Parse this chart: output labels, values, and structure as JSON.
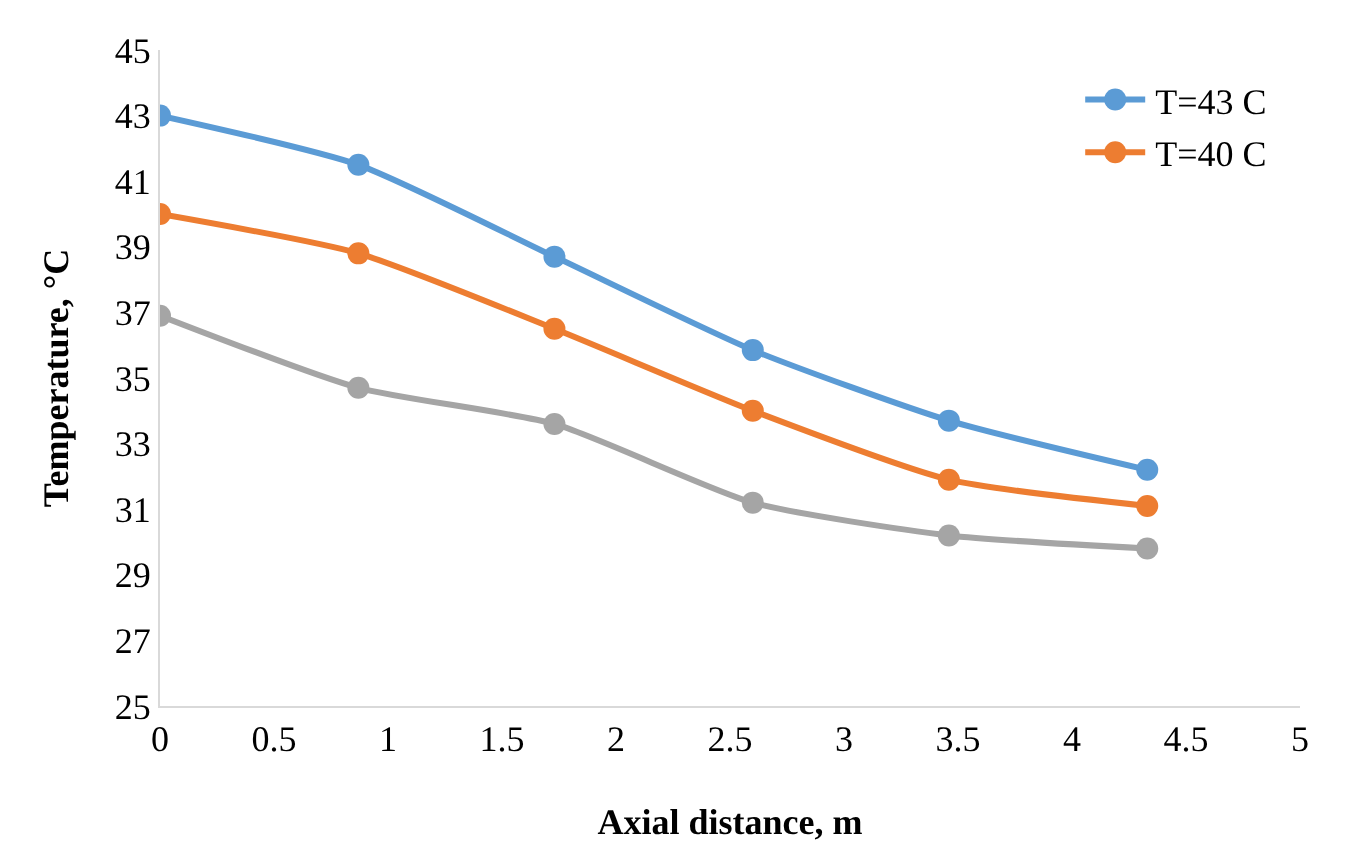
{
  "chart_data": {
    "type": "line",
    "xlabel": "Axial distance, m",
    "ylabel": "Temperature, °C",
    "x": [
      0,
      0.87,
      1.73,
      2.6,
      3.46,
      4.33
    ],
    "series": [
      {
        "name": "T=43 C",
        "color": "#5b9bd5",
        "values": [
          43.0,
          41.5,
          38.7,
          35.85,
          33.7,
          32.2
        ]
      },
      {
        "name": "T=40 C",
        "color": "#ed7d31",
        "values": [
          40.0,
          38.8,
          36.5,
          34.0,
          31.9,
          31.1
        ]
      },
      {
        "color": "#a5a5a5",
        "values": [
          36.9,
          34.7,
          33.6,
          31.2,
          30.2,
          29.8
        ]
      }
    ],
    "xlim": [
      0,
      5
    ],
    "xticks": [
      0,
      0.5,
      1,
      1.5,
      2,
      2.5,
      3,
      3.5,
      4,
      4.5,
      5
    ],
    "ylim": [
      25,
      45
    ],
    "yticks": [
      25,
      27,
      29,
      31,
      33,
      35,
      37,
      39,
      41,
      43,
      45
    ],
    "grid": false,
    "legend": "top right",
    "marker": "circle",
    "line_style": "solid"
  }
}
